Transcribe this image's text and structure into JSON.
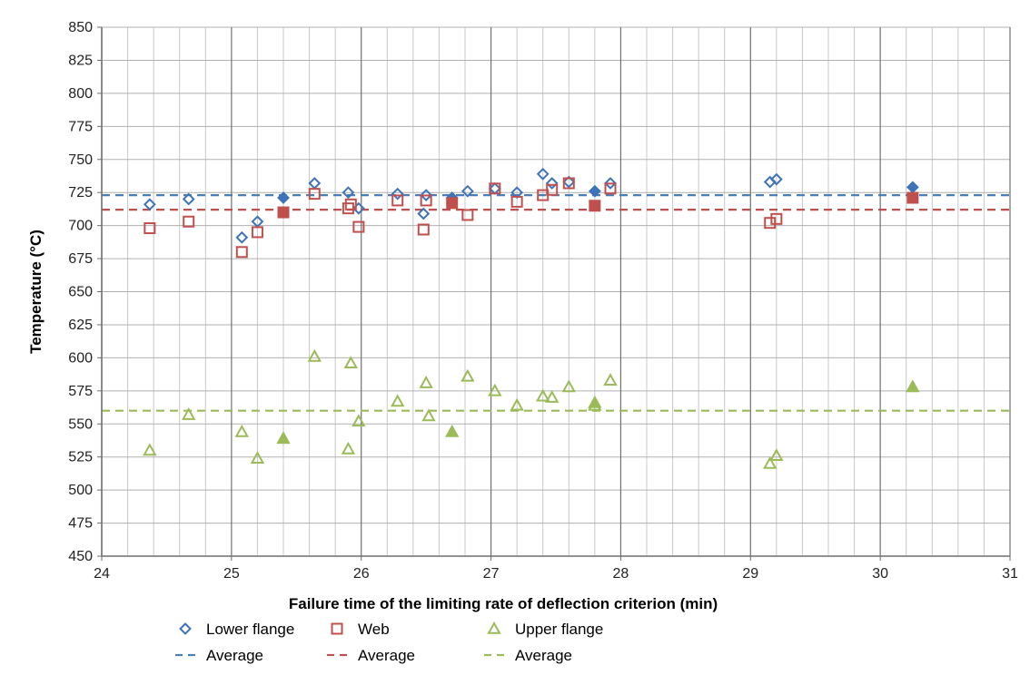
{
  "chart_data": {
    "type": "scatter",
    "title": "",
    "xlabel": "Failure time of the limiting rate of deflection criterion (min)",
    "ylabel": "Temperature (°C)",
    "xlim": [
      24,
      31
    ],
    "ylim": [
      450,
      850
    ],
    "x_major_ticks": [
      24,
      25,
      26,
      27,
      28,
      29,
      30,
      31
    ],
    "y_ticks": [
      450,
      475,
      500,
      525,
      550,
      575,
      600,
      625,
      650,
      675,
      700,
      725,
      750,
      775,
      800,
      825,
      850
    ],
    "grid": true,
    "legend_position": "bottom",
    "series": [
      {
        "name": "Lower flange",
        "marker": "diamond-open",
        "color": "#3f73b8",
        "points": [
          {
            "x": 24.37,
            "y": 716
          },
          {
            "x": 24.67,
            "y": 720
          },
          {
            "x": 25.08,
            "y": 691
          },
          {
            "x": 25.2,
            "y": 703
          },
          {
            "x": 25.64,
            "y": 732
          },
          {
            "x": 25.9,
            "y": 725
          },
          {
            "x": 25.98,
            "y": 713
          },
          {
            "x": 26.28,
            "y": 724
          },
          {
            "x": 26.5,
            "y": 723
          },
          {
            "x": 26.48,
            "y": 709
          },
          {
            "x": 26.82,
            "y": 726
          },
          {
            "x": 27.03,
            "y": 728
          },
          {
            "x": 27.2,
            "y": 725
          },
          {
            "x": 27.4,
            "y": 739
          },
          {
            "x": 27.47,
            "y": 732
          },
          {
            "x": 27.6,
            "y": 733
          },
          {
            "x": 27.92,
            "y": 732
          },
          {
            "x": 29.15,
            "y": 733
          },
          {
            "x": 29.2,
            "y": 735
          }
        ]
      },
      {
        "name": "Lower flange (filled)",
        "marker": "diamond-filled",
        "color": "#3f73b8",
        "points": [
          {
            "x": 25.4,
            "y": 721
          },
          {
            "x": 26.7,
            "y": 721
          },
          {
            "x": 27.8,
            "y": 726
          },
          {
            "x": 30.25,
            "y": 729
          }
        ]
      },
      {
        "name": "Web",
        "marker": "square-open",
        "color": "#c0504d",
        "points": [
          {
            "x": 24.37,
            "y": 698
          },
          {
            "x": 24.67,
            "y": 703
          },
          {
            "x": 25.08,
            "y": 680
          },
          {
            "x": 25.2,
            "y": 695
          },
          {
            "x": 25.64,
            "y": 724
          },
          {
            "x": 25.9,
            "y": 713
          },
          {
            "x": 25.92,
            "y": 716
          },
          {
            "x": 25.98,
            "y": 699
          },
          {
            "x": 26.28,
            "y": 719
          },
          {
            "x": 26.5,
            "y": 719
          },
          {
            "x": 26.48,
            "y": 697
          },
          {
            "x": 26.82,
            "y": 708
          },
          {
            "x": 27.03,
            "y": 728
          },
          {
            "x": 27.2,
            "y": 718
          },
          {
            "x": 27.4,
            "y": 723
          },
          {
            "x": 27.47,
            "y": 727
          },
          {
            "x": 27.6,
            "y": 732
          },
          {
            "x": 27.92,
            "y": 728
          },
          {
            "x": 29.15,
            "y": 702
          },
          {
            "x": 29.2,
            "y": 705
          }
        ]
      },
      {
        "name": "Web (filled)",
        "marker": "square-filled",
        "color": "#c0504d",
        "points": [
          {
            "x": 25.4,
            "y": 710
          },
          {
            "x": 26.7,
            "y": 717
          },
          {
            "x": 27.8,
            "y": 715
          },
          {
            "x": 30.25,
            "y": 721
          }
        ]
      },
      {
        "name": "Upper flange",
        "marker": "triangle-open",
        "color": "#9bbb59",
        "points": [
          {
            "x": 24.37,
            "y": 530
          },
          {
            "x": 24.67,
            "y": 557
          },
          {
            "x": 25.08,
            "y": 544
          },
          {
            "x": 25.2,
            "y": 524
          },
          {
            "x": 25.64,
            "y": 601
          },
          {
            "x": 25.9,
            "y": 531
          },
          {
            "x": 25.92,
            "y": 596
          },
          {
            "x": 25.98,
            "y": 552
          },
          {
            "x": 26.28,
            "y": 567
          },
          {
            "x": 26.5,
            "y": 581
          },
          {
            "x": 26.52,
            "y": 556
          },
          {
            "x": 26.82,
            "y": 586
          },
          {
            "x": 27.03,
            "y": 575
          },
          {
            "x": 27.2,
            "y": 564
          },
          {
            "x": 27.4,
            "y": 571
          },
          {
            "x": 27.47,
            "y": 570
          },
          {
            "x": 27.6,
            "y": 578
          },
          {
            "x": 27.8,
            "y": 564
          },
          {
            "x": 27.92,
            "y": 583
          },
          {
            "x": 29.15,
            "y": 520
          },
          {
            "x": 29.2,
            "y": 526
          }
        ]
      },
      {
        "name": "Upper flange (filled)",
        "marker": "triangle-filled",
        "color": "#9bbb59",
        "points": [
          {
            "x": 25.4,
            "y": 539
          },
          {
            "x": 26.7,
            "y": 544
          },
          {
            "x": 27.8,
            "y": 566
          },
          {
            "x": 30.25,
            "y": 578
          }
        ]
      }
    ],
    "averages": [
      {
        "name": "Average",
        "value": 723,
        "color": "#4a7ebb"
      },
      {
        "name": "Average",
        "value": 712,
        "color": "#c0504d"
      },
      {
        "name": "Average",
        "value": 560,
        "color": "#9bbb59"
      }
    ],
    "legend": [
      {
        "label": "Lower flange",
        "marker": "diamond-open",
        "color": "#3f73b8"
      },
      {
        "label": "Web",
        "marker": "square-open",
        "color": "#c0504d"
      },
      {
        "label": "Upper flange",
        "marker": "triangle-open",
        "color": "#9bbb59"
      },
      {
        "label": "Average",
        "marker": "dash",
        "color": "#4a7ebb"
      },
      {
        "label": "Average",
        "marker": "dash",
        "color": "#c0504d"
      },
      {
        "label": "Average",
        "marker": "dash",
        "color": "#9bbb59"
      }
    ]
  }
}
